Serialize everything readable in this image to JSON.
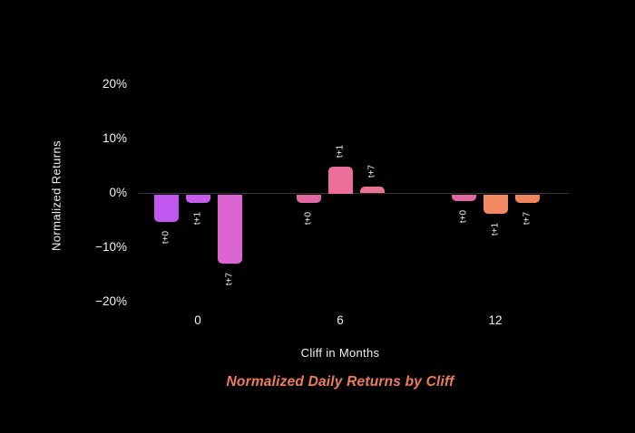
{
  "title": "Normalized Daily Returns by Cliff",
  "colors": {
    "background": "#000000",
    "text": "#f2f2f2",
    "title": "#ee7d5e",
    "zero_line": "#333333",
    "bars": [
      [
        "#c257f0",
        "#c75bee",
        "#d964d2"
      ],
      [
        "#de69a2",
        "#ec6f9b",
        "#ea7292"
      ],
      [
        "#df6aa1",
        "#f48a61",
        "#f2845c"
      ]
    ]
  },
  "chart_data": {
    "type": "bar",
    "title": "Normalized Daily Returns by Cliff",
    "xlabel": "Cliff in Months",
    "ylabel": "Normalized Returns",
    "categories": [
      "0",
      "6",
      "12"
    ],
    "series": [
      {
        "name": "t+0",
        "values": [
          -5.0,
          -1.5,
          -1.2
        ]
      },
      {
        "name": "t+1",
        "values": [
          -1.5,
          5.0,
          -3.5
        ]
      },
      {
        "name": "t+7",
        "values": [
          -12.7,
          1.2,
          -1.5
        ]
      }
    ],
    "y_ticks": [
      "20%",
      "10%",
      "0%",
      "−10%",
      "−20%"
    ],
    "y_tick_values": [
      20,
      10,
      0,
      -10,
      -20
    ],
    "ylim": [
      -22,
      24
    ],
    "grid": false,
    "legend": false,
    "bar_annotation": "series name rotated 90° beside each bar end"
  }
}
